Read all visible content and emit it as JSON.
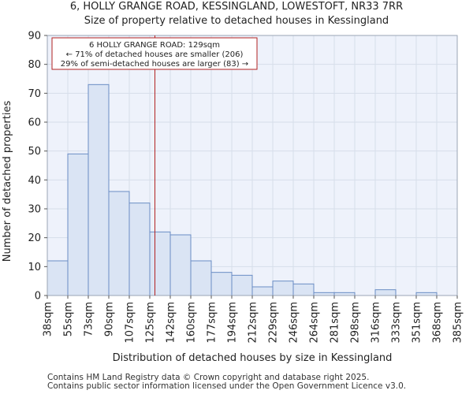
{
  "title_line1": "6, HOLLY GRANGE ROAD, KESSINGLAND, LOWESTOFT, NR33 7RR",
  "title_line2": "Size of property relative to detached houses in Kessingland",
  "footer_line1": "Contains HM Land Registry data © Crown copyright and database right 2025.",
  "footer_line2": "Contains public sector information licensed under the Open Government Licence v3.0.",
  "chart_data": {
    "type": "bar",
    "title": "Size of property relative to detached houses in Kessingland",
    "xlabel": "Distribution of detached houses by size in Kessingland",
    "ylabel": "Number of detached properties",
    "ylim": [
      0,
      90
    ],
    "yticks": [
      0,
      10,
      20,
      30,
      40,
      50,
      60,
      70,
      80,
      90
    ],
    "bin_edges": [
      "38sqm",
      "55sqm",
      "73sqm",
      "90sqm",
      "107sqm",
      "125sqm",
      "142sqm",
      "160sqm",
      "177sqm",
      "194sqm",
      "212sqm",
      "229sqm",
      "246sqm",
      "264sqm",
      "281sqm",
      "298sqm",
      "316sqm",
      "333sqm",
      "351sqm",
      "368sqm",
      "385sqm"
    ],
    "values": [
      12,
      49,
      73,
      36,
      32,
      22,
      21,
      12,
      8,
      7,
      3,
      5,
      4,
      1,
      1,
      0,
      2,
      0,
      1,
      0
    ],
    "marker": {
      "value_sqm": 129,
      "bin_position": 5.25,
      "label_line1": "6 HOLLY GRANGE ROAD: 129sqm",
      "label_line2": "← 71% of detached houses are smaller (206)",
      "label_line3": "29% of semi-detached houses are larger (83) →"
    },
    "colors": {
      "bar_fill": "#dae4f4",
      "bar_stroke": "#6a8dc4",
      "grid": "#d6deea",
      "plot_bg": "#eef2fb",
      "marker": "#b22222"
    }
  }
}
